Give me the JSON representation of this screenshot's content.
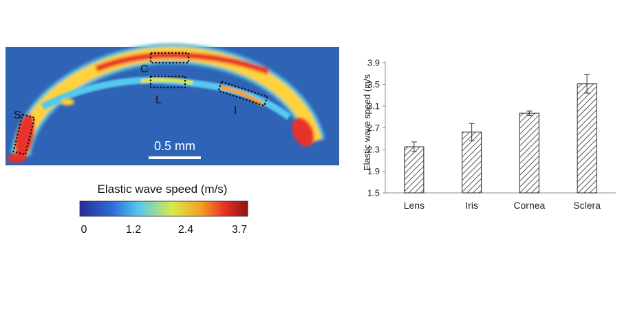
{
  "elastography": {
    "region_labels": [
      "C",
      "L",
      "I",
      "S"
    ],
    "scale_bar_label": "0.5 mm",
    "colorbar": {
      "title": "Elastic wave speed (m/s)",
      "ticks": [
        "0",
        "1.2",
        "2.4",
        "3.7"
      ],
      "colors": [
        "#2a2c9a",
        "#2f6fd8",
        "#55c8ef",
        "#d8e84a",
        "#f6a123",
        "#e63323",
        "#8e1414"
      ]
    },
    "colors": {
      "background": "#2f63b6",
      "arc_outer": "#ffd23a",
      "arc_core": "#e8332b",
      "roi_box": "#111111",
      "scale_bar": "#ffffff"
    }
  },
  "chart_data": {
    "type": "bar",
    "categories": [
      "Lens",
      "Iris",
      "Cornea",
      "Sclera"
    ],
    "values": [
      2.35,
      2.62,
      2.97,
      3.51
    ],
    "errors": [
      0.09,
      0.16,
      0.04,
      0.17
    ],
    "xlabel": "",
    "ylabel": "Elastic wave speed (m/s",
    "ylim": [
      1.5,
      3.9
    ],
    "yticks": [
      "1.5",
      "1.9",
      "2.3",
      "2.7",
      "3.1",
      "3.5",
      "3.9"
    ],
    "bar_pattern": "diagonal-hatch",
    "grid": false,
    "legend": "none"
  }
}
